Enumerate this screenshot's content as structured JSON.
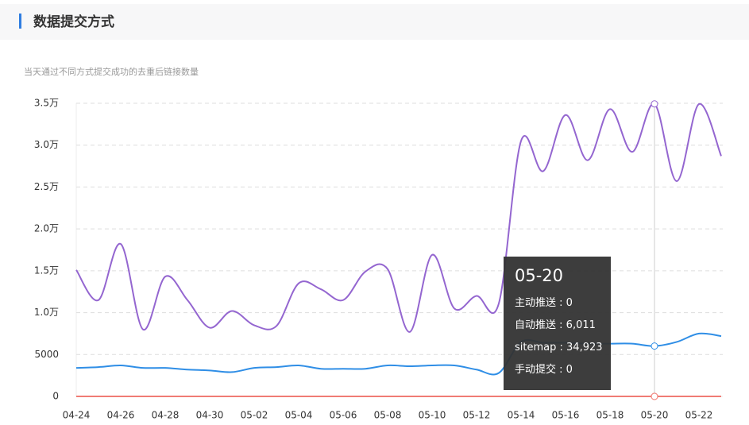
{
  "header": {
    "title": "数据提交方式"
  },
  "subtitle": "当天通过不同方式提交成功的去重后链接数量",
  "chart_data": {
    "type": "line",
    "categories": [
      "04-24",
      null,
      "04-26",
      null,
      "04-28",
      null,
      "04-30",
      null,
      "05-02",
      null,
      "05-04",
      null,
      "05-06",
      null,
      "05-08",
      null,
      "05-10",
      null,
      "05-12",
      null,
      "05-14",
      null,
      "05-16",
      null,
      "05-18",
      null,
      "05-20",
      null,
      "05-22",
      null
    ],
    "series": [
      {
        "name": "主动推送",
        "color": "#f07b74",
        "values": [
          0,
          0,
          0,
          0,
          0,
          0,
          0,
          0,
          0,
          0,
          0,
          0,
          0,
          0,
          0,
          0,
          0,
          0,
          0,
          0,
          0,
          0,
          0,
          0,
          0,
          0,
          0,
          0,
          0,
          0
        ]
      },
      {
        "name": "自动推送",
        "color": "#2f8ee6",
        "values": [
          3400,
          3500,
          3700,
          3400,
          3400,
          3200,
          3100,
          2900,
          3400,
          3500,
          3700,
          3300,
          3300,
          3300,
          3700,
          3600,
          3700,
          3700,
          3200,
          2800,
          6500,
          6400,
          6400,
          6300,
          6300,
          6300,
          6011,
          6500,
          7500,
          7200
        ]
      },
      {
        "name": "sitemap",
        "color": "#9466d0",
        "values": [
          15100,
          11500,
          18200,
          8000,
          14300,
          11500,
          8200,
          10200,
          8500,
          8400,
          13500,
          12800,
          11500,
          14900,
          15200,
          7700,
          16900,
          10500,
          12000,
          11100,
          30500,
          26900,
          33600,
          28200,
          34300,
          29200,
          34923,
          25700,
          34900,
          28700
        ]
      },
      {
        "name": "手动提交",
        "color": "#f07b74",
        "values": [
          0,
          0,
          0,
          0,
          0,
          0,
          0,
          0,
          0,
          0,
          0,
          0,
          0,
          0,
          0,
          0,
          0,
          0,
          0,
          0,
          0,
          0,
          0,
          0,
          0,
          0,
          0,
          0,
          0,
          0
        ]
      }
    ],
    "ylim": [
      0,
      35000
    ],
    "yticks": [
      0,
      5000,
      {
        "value": 10000,
        "label": "1.0万"
      },
      {
        "value": 15000,
        "label": "1.5万"
      },
      {
        "value": 20000,
        "label": "2.0万"
      },
      {
        "value": 25000,
        "label": "2.5万"
      },
      {
        "value": 30000,
        "label": "3.0万"
      },
      {
        "value": 35000,
        "label": "3.5万"
      }
    ],
    "grid": true,
    "tooltip": {
      "separator": " : ",
      "labels": [
        "0",
        "6,011",
        "34,923",
        "0"
      ]
    }
  }
}
